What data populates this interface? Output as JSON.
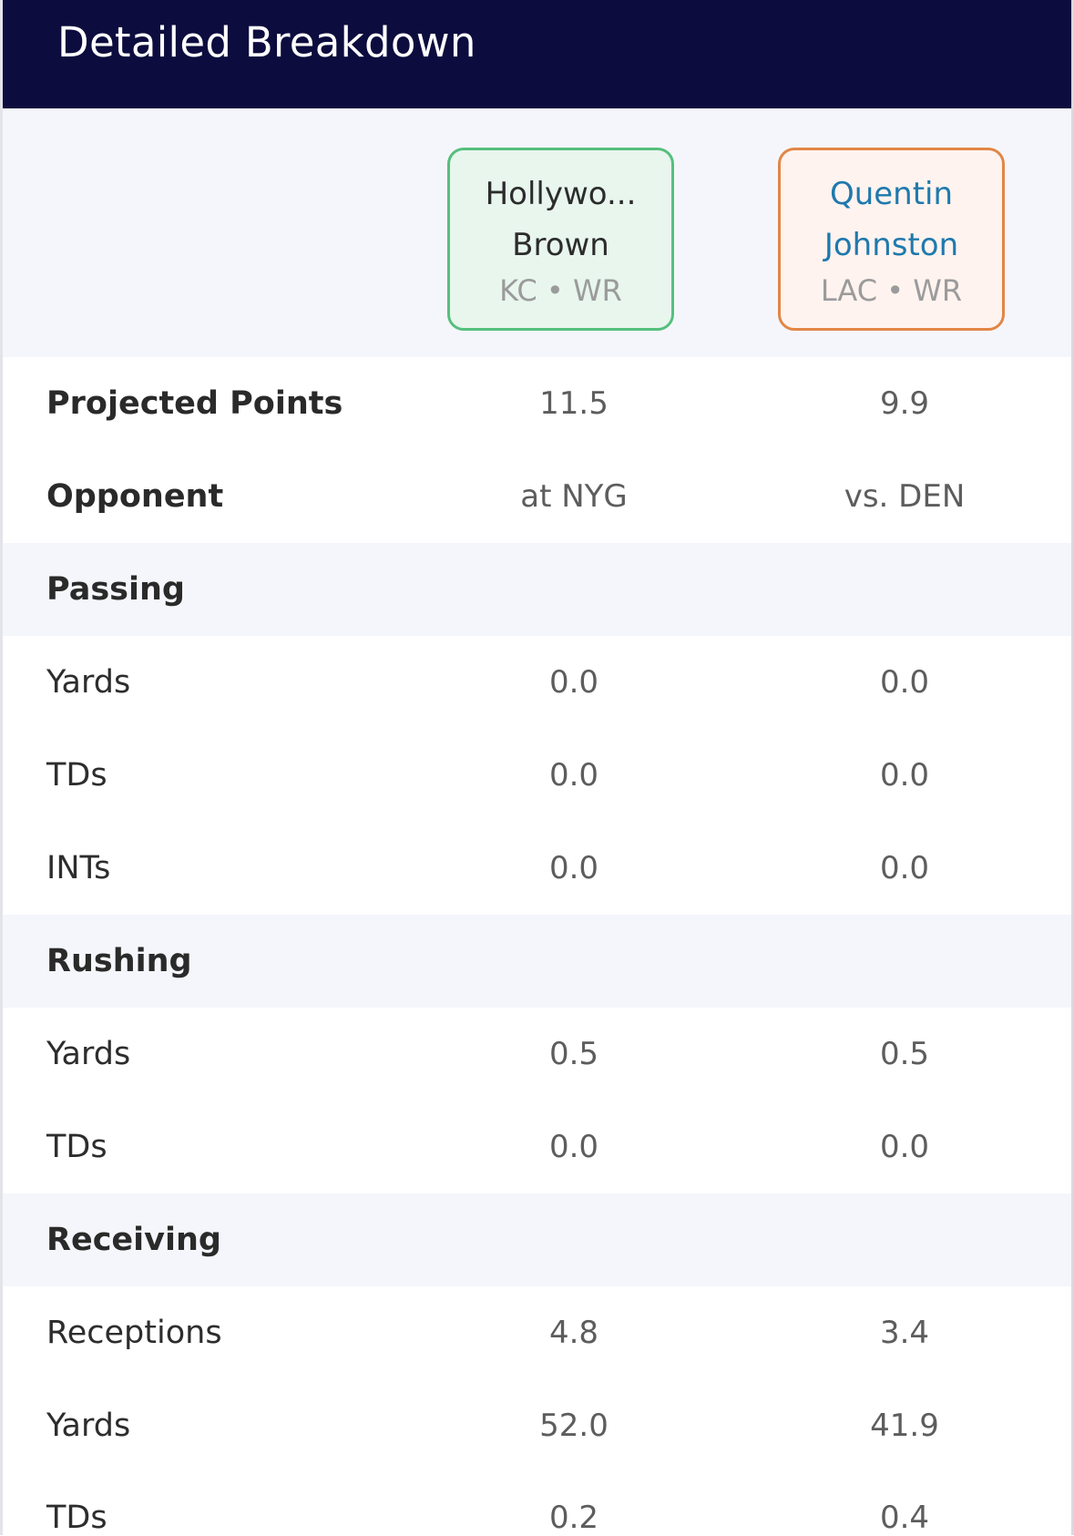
{
  "header": {
    "title": "Detailed Breakdown"
  },
  "players": [
    {
      "name": "Hollywo...\nBrown",
      "name_line1": "Hollywo...",
      "name_line2": "Brown",
      "team_pos": "KC • WR",
      "accent": "#56bf7d",
      "card_bg": "#e8f6ee"
    },
    {
      "name": "Quentin\nJohnston",
      "name_line1": "Quentin",
      "name_line2": "Johnston",
      "team_pos": "LAC • WR",
      "accent": "#e28646",
      "card_bg": "#fff3ef",
      "name_color": "#1f79ad"
    }
  ],
  "summary_rows": [
    {
      "label": "Projected Points",
      "values": [
        "11.5",
        "9.9"
      ]
    },
    {
      "label": "Opponent",
      "values": [
        "at NYG",
        "vs. DEN"
      ]
    }
  ],
  "sections": [
    {
      "title": "Passing",
      "rows": [
        {
          "label": "Yards",
          "values": [
            "0.0",
            "0.0"
          ]
        },
        {
          "label": "TDs",
          "values": [
            "0.0",
            "0.0"
          ]
        },
        {
          "label": "INTs",
          "values": [
            "0.0",
            "0.0"
          ]
        }
      ]
    },
    {
      "title": "Rushing",
      "rows": [
        {
          "label": "Yards",
          "values": [
            "0.5",
            "0.5"
          ]
        },
        {
          "label": "TDs",
          "values": [
            "0.0",
            "0.0"
          ]
        }
      ]
    },
    {
      "title": "Receiving",
      "rows": [
        {
          "label": "Receptions",
          "values": [
            "4.8",
            "3.4"
          ]
        },
        {
          "label": "Yards",
          "values": [
            "52.0",
            "41.9"
          ]
        },
        {
          "label": "TDs",
          "values": [
            "0.2",
            "0.4"
          ]
        }
      ]
    }
  ],
  "colors": {
    "header_bg": "#0c0c3e",
    "section_bg": "#f5f6fb",
    "value_text": "#5d5d5d"
  }
}
